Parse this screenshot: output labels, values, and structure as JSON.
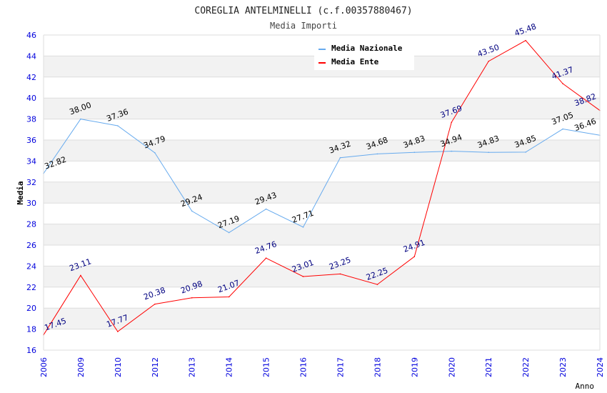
{
  "chart_data": {
    "type": "line",
    "title": "COREGLIA ANTELMINELLI (c.f.00357880467)",
    "subtitle": "Media Importi",
    "xlabel": "Anno",
    "ylabel": "Media",
    "ylim": [
      16,
      46
    ],
    "yticks": [
      16,
      18,
      20,
      22,
      24,
      26,
      28,
      30,
      32,
      34,
      36,
      38,
      40,
      42,
      44,
      46
    ],
    "categories": [
      "2006",
      "2009",
      "2010",
      "2012",
      "2013",
      "2014",
      "2015",
      "2016",
      "2017",
      "2018",
      "2019",
      "2020",
      "2021",
      "2022",
      "2023",
      "2024"
    ],
    "grid": true,
    "legend_position": "top-right",
    "series": [
      {
        "name": "Media Nazionale",
        "color": "#66aaee",
        "label_color": "#000000",
        "values": [
          32.82,
          38.0,
          37.36,
          34.79,
          29.24,
          27.19,
          29.43,
          27.71,
          34.32,
          34.68,
          34.83,
          34.94,
          34.83,
          34.85,
          37.05,
          36.46
        ]
      },
      {
        "name": "Media Ente",
        "color": "#ff0000",
        "label_color": "#000080",
        "values": [
          17.45,
          23.11,
          17.77,
          20.38,
          20.98,
          21.07,
          24.76,
          23.01,
          23.25,
          22.25,
          24.91,
          37.69,
          43.5,
          45.48,
          41.37,
          38.82
        ]
      }
    ]
  }
}
